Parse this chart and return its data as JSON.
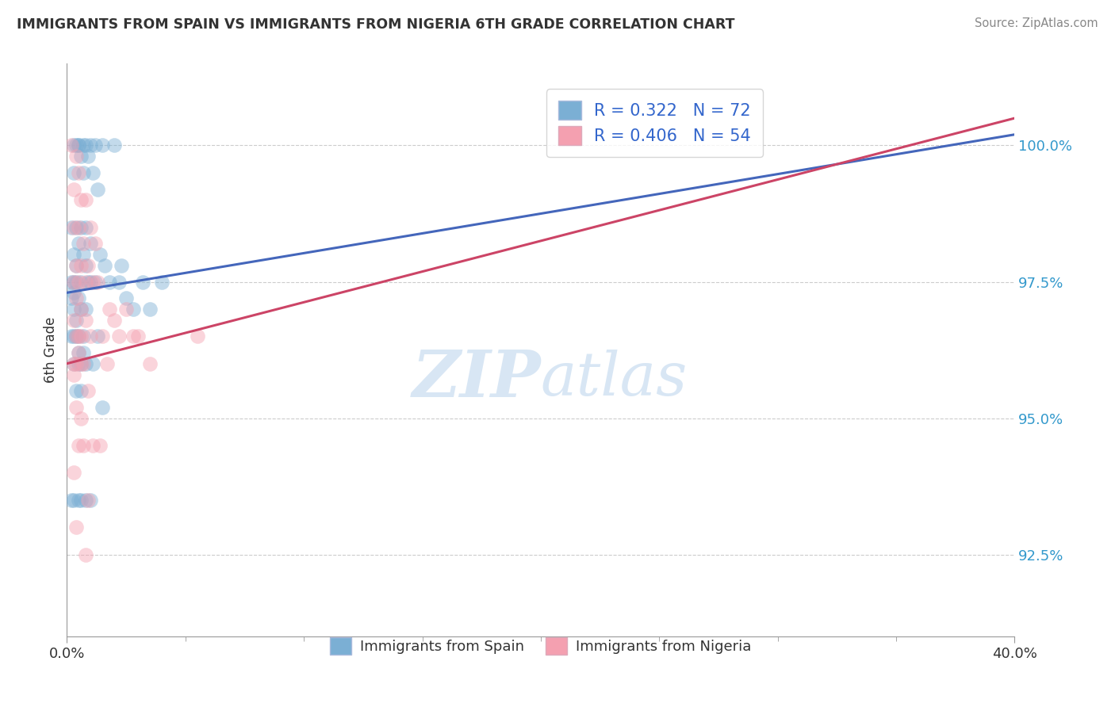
{
  "title": "IMMIGRANTS FROM SPAIN VS IMMIGRANTS FROM NIGERIA 6TH GRADE CORRELATION CHART",
  "source": "Source: ZipAtlas.com",
  "xlabel_blue": "Immigrants from Spain",
  "xlabel_pink": "Immigrants from Nigeria",
  "ylabel": "6th Grade",
  "xlim": [
    0.0,
    40.0
  ],
  "ylim": [
    91.0,
    101.5
  ],
  "yticks": [
    92.5,
    95.0,
    97.5,
    100.0
  ],
  "ytick_labels": [
    "92.5%",
    "95.0%",
    "97.5%",
    "100.0%"
  ],
  "xticks": [
    0.0,
    40.0
  ],
  "xtick_labels": [
    "0.0%",
    "40.0%"
  ],
  "blue_R": 0.322,
  "blue_N": 72,
  "pink_R": 0.406,
  "pink_N": 54,
  "blue_color": "#7BAFD4",
  "pink_color": "#F4A0B0",
  "blue_line_color": "#4466BB",
  "pink_line_color": "#CC4466",
  "background_color": "#FFFFFF",
  "grid_color": "#CCCCCC",
  "watermark_zip": "ZIP",
  "watermark_atlas": "atlas",
  "blue_line_x0": 0.0,
  "blue_line_y0": 97.3,
  "blue_line_x1": 40.0,
  "blue_line_y1": 100.2,
  "pink_line_x0": 0.0,
  "pink_line_y0": 96.0,
  "pink_line_x1": 40.0,
  "pink_line_y1": 100.5,
  "blue_scatter_x": [
    0.5,
    0.7,
    1.0,
    0.8,
    1.2,
    0.3,
    0.6,
    1.5,
    2.0,
    0.4,
    0.9,
    0.5,
    0.3,
    0.7,
    1.1,
    1.3,
    0.2,
    0.4,
    0.6,
    0.8,
    1.0,
    1.4,
    0.3,
    0.5,
    0.7,
    1.6,
    2.2,
    0.4,
    0.6,
    0.8,
    1.0,
    0.3,
    0.2,
    1.2,
    0.9,
    0.3,
    0.5,
    0.4,
    0.6,
    0.8,
    0.3,
    0.4,
    0.2,
    0.5,
    0.7,
    1.8,
    2.3,
    3.2,
    0.3,
    0.4,
    0.2,
    0.5,
    2.5,
    0.6,
    4.0,
    0.7,
    0.3,
    0.5,
    1.1,
    0.8,
    1.3,
    0.4,
    0.6,
    3.5,
    1.5,
    2.8,
    0.3,
    0.2,
    0.5,
    1.0,
    0.8,
    0.6
  ],
  "blue_scatter_y": [
    100.0,
    100.0,
    100.0,
    100.0,
    100.0,
    100.0,
    99.8,
    100.0,
    100.0,
    100.0,
    99.8,
    100.0,
    99.5,
    99.5,
    99.5,
    99.2,
    98.5,
    98.5,
    98.5,
    98.5,
    98.2,
    98.0,
    98.0,
    98.2,
    98.0,
    97.8,
    97.5,
    97.8,
    97.5,
    97.8,
    97.5,
    97.5,
    97.5,
    97.5,
    97.5,
    97.3,
    97.2,
    97.5,
    97.0,
    97.0,
    97.0,
    96.8,
    97.2,
    96.5,
    96.5,
    97.5,
    97.8,
    97.5,
    96.5,
    96.5,
    96.5,
    96.2,
    97.2,
    96.0,
    97.5,
    96.2,
    96.0,
    96.0,
    96.0,
    96.0,
    96.5,
    95.5,
    95.5,
    97.0,
    95.2,
    97.0,
    93.5,
    93.5,
    93.5,
    93.5,
    93.5,
    93.5
  ],
  "pink_scatter_x": [
    0.2,
    0.4,
    0.5,
    0.3,
    0.6,
    0.8,
    0.3,
    0.5,
    0.7,
    1.0,
    1.2,
    0.4,
    0.6,
    0.9,
    1.1,
    0.3,
    0.5,
    0.8,
    1.3,
    0.4,
    0.6,
    0.8,
    0.3,
    0.5,
    1.8,
    0.4,
    0.6,
    1.0,
    1.5,
    2.0,
    0.3,
    0.5,
    0.4,
    0.6,
    0.3,
    0.7,
    0.9,
    1.7,
    2.5,
    3.0,
    0.4,
    0.6,
    1.1,
    2.2,
    0.5,
    0.7,
    3.5,
    0.3,
    1.4,
    0.9,
    2.8,
    5.5,
    0.4,
    0.8
  ],
  "pink_scatter_y": [
    100.0,
    99.8,
    99.5,
    99.2,
    99.0,
    99.0,
    98.5,
    98.5,
    98.2,
    98.5,
    98.2,
    97.8,
    97.8,
    97.8,
    97.5,
    97.5,
    97.5,
    97.5,
    97.5,
    97.2,
    97.0,
    96.8,
    96.8,
    96.5,
    97.0,
    96.5,
    96.5,
    96.5,
    96.5,
    96.8,
    96.0,
    96.2,
    96.0,
    96.0,
    95.8,
    96.0,
    95.5,
    96.0,
    97.0,
    96.5,
    95.2,
    95.0,
    94.5,
    96.5,
    94.5,
    94.5,
    96.0,
    94.0,
    94.5,
    93.5,
    96.5,
    96.5,
    93.0,
    92.5
  ]
}
